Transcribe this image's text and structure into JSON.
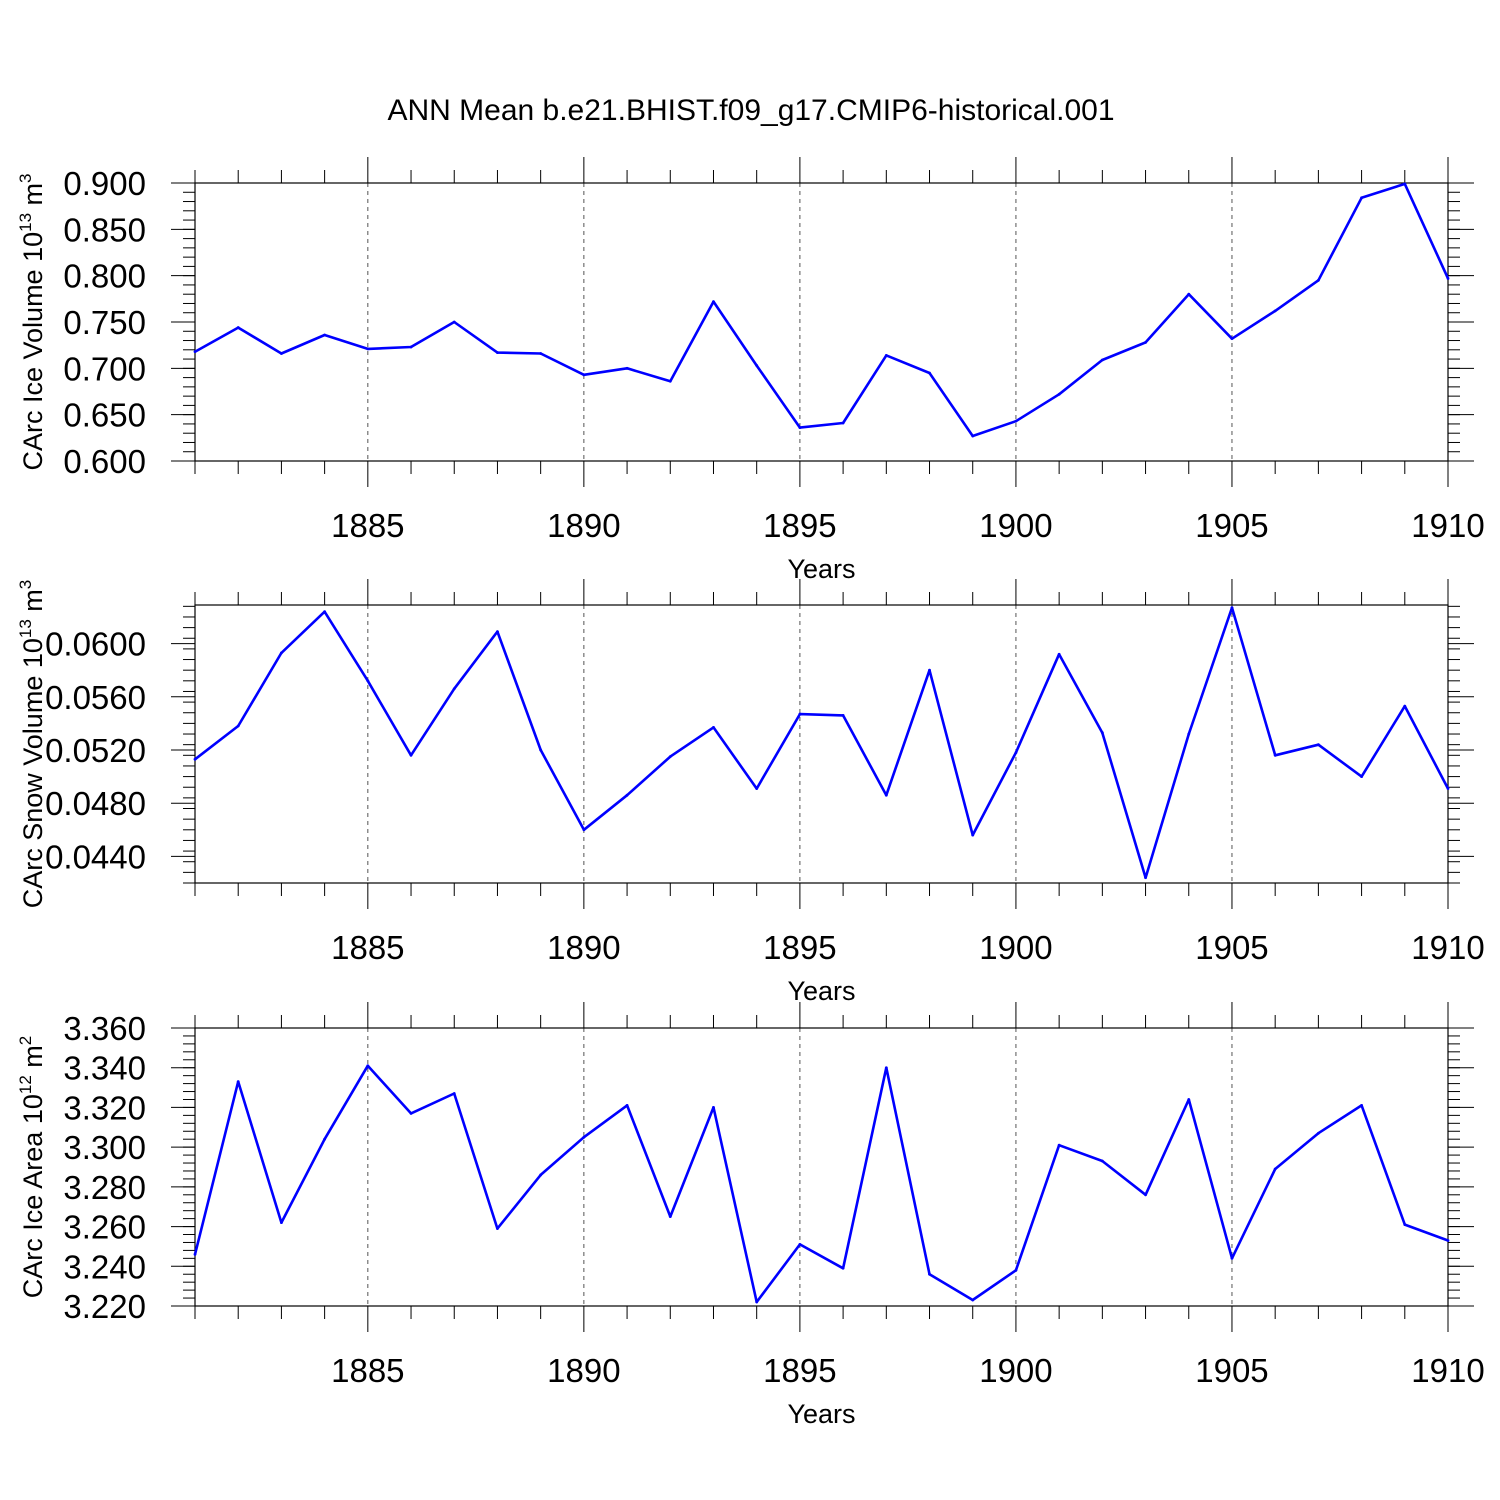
{
  "title": "ANN Mean b.e21.BHIST.f09_g17.CMIP6-historical.001",
  "colors": {
    "line": "#0000ff",
    "axis": "#000000",
    "grid": "#555555"
  },
  "chart_data": [
    {
      "type": "line",
      "name": "ice-volume",
      "ylabel": {
        "text": "CArc Ice Volume 10",
        "sup": "13",
        "unit": " m",
        "unit_sup": "3"
      },
      "xlabel": "Years",
      "xlim": [
        1881,
        1910
      ],
      "ylim": [
        0.6,
        0.9
      ],
      "xticks": [
        1885,
        1890,
        1895,
        1900,
        1905,
        1910
      ],
      "yticks": [
        0.6,
        0.65,
        0.7,
        0.75,
        0.8,
        0.85,
        0.9
      ],
      "ytick_labels": [
        "0.600",
        "0.650",
        "0.700",
        "0.750",
        "0.800",
        "0.850",
        "0.900"
      ],
      "y_minor_step": 0.01,
      "x": [
        1881,
        1882,
        1883,
        1884,
        1885,
        1886,
        1887,
        1888,
        1889,
        1890,
        1891,
        1892,
        1893,
        1894,
        1895,
        1896,
        1897,
        1898,
        1899,
        1900,
        1901,
        1902,
        1903,
        1904,
        1905,
        1906,
        1907,
        1908,
        1909,
        1910
      ],
      "y": [
        0.718,
        0.744,
        0.716,
        0.736,
        0.721,
        0.723,
        0.75,
        0.717,
        0.716,
        0.693,
        0.7,
        0.686,
        0.772,
        0.703,
        0.636,
        0.641,
        0.714,
        0.695,
        0.627,
        0.643,
        0.672,
        0.709,
        0.728,
        0.78,
        0.732,
        0.762,
        0.795,
        0.884,
        0.899,
        0.797
      ]
    },
    {
      "type": "line",
      "name": "snow-volume",
      "ylabel": {
        "text": "CArc Snow Volume 10",
        "sup": "13",
        "unit": " m",
        "unit_sup": "3"
      },
      "xlabel": "Years",
      "xlim": [
        1881,
        1910
      ],
      "ylim": [
        0.042,
        0.0629
      ],
      "xticks": [
        1885,
        1890,
        1895,
        1900,
        1905,
        1910
      ],
      "yticks": [
        0.044,
        0.048,
        0.052,
        0.056,
        0.06
      ],
      "ytick_labels": [
        "0.0440",
        "0.0480",
        "0.0520",
        "0.0560",
        "0.0600"
      ],
      "y_minor_step": 0.0008,
      "x": [
        1881,
        1882,
        1883,
        1884,
        1885,
        1886,
        1887,
        1888,
        1889,
        1890,
        1891,
        1892,
        1893,
        1894,
        1895,
        1896,
        1897,
        1898,
        1899,
        1900,
        1901,
        1902,
        1903,
        1904,
        1905,
        1906,
        1907,
        1908,
        1909,
        1910
      ],
      "y": [
        0.0513,
        0.0538,
        0.0593,
        0.0624,
        0.0572,
        0.0516,
        0.0566,
        0.0609,
        0.052,
        0.046,
        0.0486,
        0.0515,
        0.0537,
        0.0491,
        0.0547,
        0.0546,
        0.0486,
        0.058,
        0.0456,
        0.0518,
        0.0592,
        0.0533,
        0.0424,
        0.0532,
        0.0627,
        0.0516,
        0.0524,
        0.05,
        0.0553,
        0.0491
      ]
    },
    {
      "type": "line",
      "name": "ice-area",
      "ylabel": {
        "text": "CArc Ice Area 10",
        "sup": "12",
        "unit": " m",
        "unit_sup": "2"
      },
      "xlabel": "Years",
      "xlim": [
        1881,
        1910
      ],
      "ylim": [
        3.22,
        3.36
      ],
      "xticks": [
        1885,
        1890,
        1895,
        1900,
        1905,
        1910
      ],
      "yticks": [
        3.22,
        3.24,
        3.26,
        3.28,
        3.3,
        3.32,
        3.34,
        3.36
      ],
      "ytick_labels": [
        "3.220",
        "3.240",
        "3.260",
        "3.280",
        "3.300",
        "3.320",
        "3.340",
        "3.360"
      ],
      "y_minor_step": 0.004,
      "x": [
        1881,
        1882,
        1883,
        1884,
        1885,
        1886,
        1887,
        1888,
        1889,
        1890,
        1891,
        1892,
        1893,
        1894,
        1895,
        1896,
        1897,
        1898,
        1899,
        1900,
        1901,
        1902,
        1903,
        1904,
        1905,
        1906,
        1907,
        1908,
        1909,
        1910
      ],
      "y": [
        3.246,
        3.333,
        3.262,
        3.304,
        3.341,
        3.317,
        3.327,
        3.259,
        3.286,
        3.305,
        3.321,
        3.265,
        3.32,
        3.222,
        3.251,
        3.239,
        3.34,
        3.236,
        3.223,
        3.238,
        3.301,
        3.293,
        3.276,
        3.324,
        3.244,
        3.289,
        3.307,
        3.321,
        3.261,
        3.253
      ]
    }
  ]
}
